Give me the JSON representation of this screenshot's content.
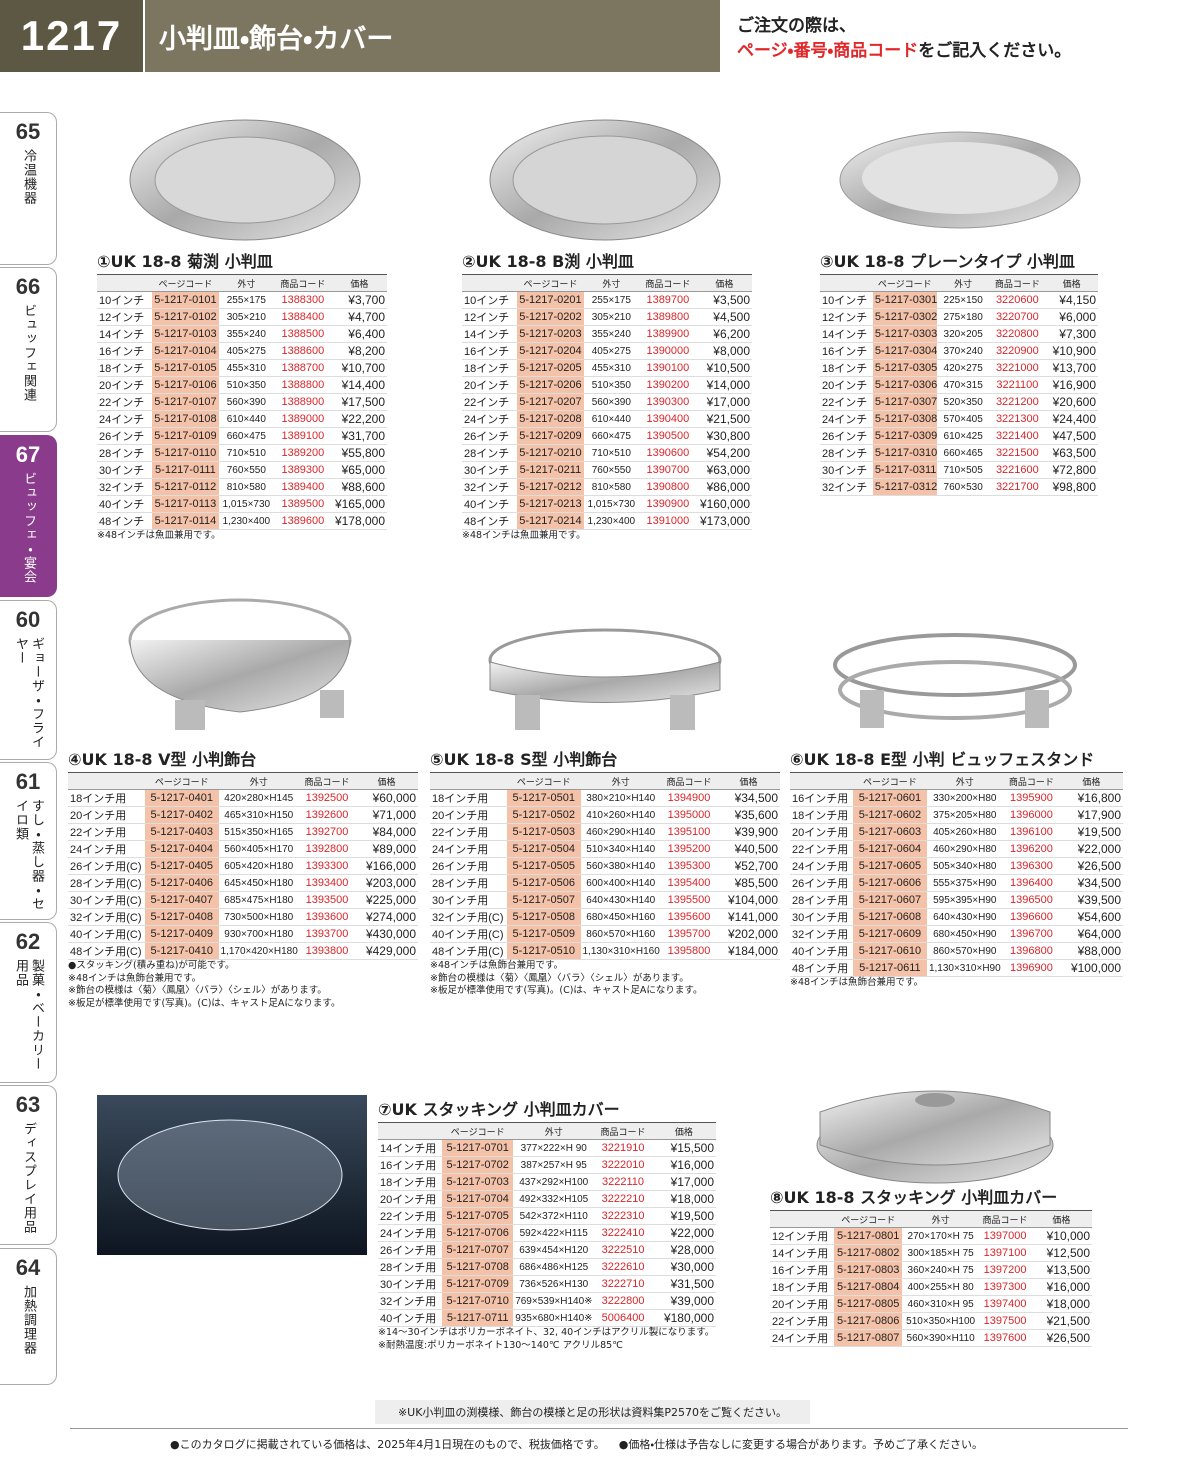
{
  "header": {
    "page_number": "1217",
    "title": "小判皿・飾台・カバー",
    "order_note": {
      "line1": "ご注文の際は、",
      "highlight": "ページ・番号・商品コード",
      "rest": "をご記入ください。"
    }
  },
  "side_tabs": [
    {
      "number": "65",
      "label": "冷温機器"
    },
    {
      "number": "66",
      "label": "ビュッフェ関連"
    },
    {
      "number": "67",
      "label": "ビュッフェ・宴会"
    },
    {
      "number": "60",
      "label": "ギョーザ・フライヤー"
    },
    {
      "number": "61",
      "label": "すし・蒸し器・セイロ類"
    },
    {
      "number": "62",
      "label": "製菓・ベーカリー用品"
    },
    {
      "number": "63",
      "label": "ディスプレイ用品"
    },
    {
      "number": "64",
      "label": "加熱調理器"
    }
  ],
  "products": [
    {
      "title": "①UK 18-8 菊渕 小判皿",
      "columns": [
        "ページコード",
        "外寸",
        "商品コード",
        "価格"
      ],
      "rows": [
        [
          "10インチ",
          "5-1217-0101",
          "255×175",
          "1388300",
          "¥3,700"
        ],
        [
          "12インチ",
          "5-1217-0102",
          "305×210",
          "1388400",
          "¥4,700"
        ],
        [
          "14インチ",
          "5-1217-0103",
          "355×240",
          "1388500",
          "¥6,400"
        ],
        [
          "16インチ",
          "5-1217-0104",
          "405×275",
          "1388600",
          "¥8,200"
        ],
        [
          "18インチ",
          "5-1217-0105",
          "455×310",
          "1388700",
          "¥10,700"
        ],
        [
          "20インチ",
          "5-1217-0106",
          "510×350",
          "1388800",
          "¥14,400"
        ],
        [
          "22インチ",
          "5-1217-0107",
          "560×390",
          "1388900",
          "¥17,500"
        ],
        [
          "24インチ",
          "5-1217-0108",
          "610×440",
          "1389000",
          "¥22,200"
        ],
        [
          "26インチ",
          "5-1217-0109",
          "660×475",
          "1389100",
          "¥31,700"
        ],
        [
          "28インチ",
          "5-1217-0110",
          "710×510",
          "1389200",
          "¥55,800"
        ],
        [
          "30インチ",
          "5-1217-0111",
          "760×550",
          "1389300",
          "¥65,000"
        ],
        [
          "32インチ",
          "5-1217-0112",
          "810×580",
          "1389400",
          "¥88,600"
        ],
        [
          "40インチ",
          "5-1217-0113",
          "1,015×730",
          "1389500",
          "¥165,000"
        ],
        [
          "48インチ",
          "5-1217-0114",
          "1,230×400",
          "1389600",
          "¥178,000"
        ]
      ],
      "notes": [
        "※48インチは魚皿兼用です。"
      ]
    },
    {
      "title": "②UK 18-8 B渕 小判皿",
      "columns": [
        "ページコード",
        "外寸",
        "商品コード",
        "価格"
      ],
      "rows": [
        [
          "10インチ",
          "5-1217-0201",
          "255×175",
          "1389700",
          "¥3,500"
        ],
        [
          "12インチ",
          "5-1217-0202",
          "305×210",
          "1389800",
          "¥4,500"
        ],
        [
          "14インチ",
          "5-1217-0203",
          "355×240",
          "1389900",
          "¥6,200"
        ],
        [
          "16インチ",
          "5-1217-0204",
          "405×275",
          "1390000",
          "¥8,000"
        ],
        [
          "18インチ",
          "5-1217-0205",
          "455×310",
          "1390100",
          "¥10,500"
        ],
        [
          "20インチ",
          "5-1217-0206",
          "510×350",
          "1390200",
          "¥14,000"
        ],
        [
          "22インチ",
          "5-1217-0207",
          "560×390",
          "1390300",
          "¥17,000"
        ],
        [
          "24インチ",
          "5-1217-0208",
          "610×440",
          "1390400",
          "¥21,500"
        ],
        [
          "26インチ",
          "5-1217-0209",
          "660×475",
          "1390500",
          "¥30,800"
        ],
        [
          "28インチ",
          "5-1217-0210",
          "710×510",
          "1390600",
          "¥54,200"
        ],
        [
          "30インチ",
          "5-1217-0211",
          "760×550",
          "1390700",
          "¥63,000"
        ],
        [
          "32インチ",
          "5-1217-0212",
          "810×580",
          "1390800",
          "¥86,000"
        ],
        [
          "40インチ",
          "5-1217-0213",
          "1,015×730",
          "1390900",
          "¥160,000"
        ],
        [
          "48インチ",
          "5-1217-0214",
          "1,230×400",
          "1391000",
          "¥173,000"
        ]
      ],
      "notes": [
        "※48インチは魚皿兼用です。"
      ]
    },
    {
      "title": "③UK 18-8 プレーンタイプ 小判皿",
      "columns": [
        "ページコード",
        "外寸",
        "商品コード",
        "価格"
      ],
      "rows": [
        [
          "10インチ",
          "5-1217-0301",
          "225×150",
          "3220600",
          "¥4,150"
        ],
        [
          "12インチ",
          "5-1217-0302",
          "275×180",
          "3220700",
          "¥6,000"
        ],
        [
          "14インチ",
          "5-1217-0303",
          "320×205",
          "3220800",
          "¥7,300"
        ],
        [
          "16インチ",
          "5-1217-0304",
          "370×240",
          "3220900",
          "¥10,900"
        ],
        [
          "18インチ",
          "5-1217-0305",
          "420×275",
          "3221000",
          "¥13,700"
        ],
        [
          "20インチ",
          "5-1217-0306",
          "470×315",
          "3221100",
          "¥16,900"
        ],
        [
          "22インチ",
          "5-1217-0307",
          "520×350",
          "3221200",
          "¥20,600"
        ],
        [
          "24インチ",
          "5-1217-0308",
          "570×405",
          "3221300",
          "¥24,400"
        ],
        [
          "26インチ",
          "5-1217-0309",
          "610×425",
          "3221400",
          "¥47,500"
        ],
        [
          "28インチ",
          "5-1217-0310",
          "660×465",
          "3221500",
          "¥63,500"
        ],
        [
          "30インチ",
          "5-1217-0311",
          "710×505",
          "3221600",
          "¥72,800"
        ],
        [
          "32インチ",
          "5-1217-0312",
          "760×530",
          "3221700",
          "¥98,800"
        ]
      ],
      "notes": []
    },
    {
      "title": "④UK 18-8 V型 小判飾台",
      "columns": [
        "ページコード",
        "外寸",
        "商品コード",
        "価格"
      ],
      "rows": [
        [
          "18インチ用",
          "5-1217-0401",
          "420×280×H145",
          "1392500",
          "¥60,000"
        ],
        [
          "20インチ用",
          "5-1217-0402",
          "465×310×H150",
          "1392600",
          "¥71,000"
        ],
        [
          "22インチ用",
          "5-1217-0403",
          "515×350×H165",
          "1392700",
          "¥84,000"
        ],
        [
          "24インチ用",
          "5-1217-0404",
          "560×405×H170",
          "1392800",
          "¥89,000"
        ],
        [
          "26インチ用(C)",
          "5-1217-0405",
          "605×420×H180",
          "1393300",
          "¥166,000"
        ],
        [
          "28インチ用(C)",
          "5-1217-0406",
          "645×450×H180",
          "1393400",
          "¥203,000"
        ],
        [
          "30インチ用(C)",
          "5-1217-0407",
          "685×475×H180",
          "1393500",
          "¥225,000"
        ],
        [
          "32インチ用(C)",
          "5-1217-0408",
          "730×500×H180",
          "1393600",
          "¥274,000"
        ],
        [
          "40インチ用(C)",
          "5-1217-0409",
          "930×700×H180",
          "1393700",
          "¥430,000"
        ],
        [
          "48インチ用(C)",
          "5-1217-0410",
          "1,170×420×H180",
          "1393800",
          "¥429,000"
        ]
      ],
      "notes": [
        "●スタッキング(積み重ね)が可能です。",
        "※48インチは魚飾台兼用です。",
        "※飾台の模様は〈菊〉〈鳳凰〉〈バラ〉〈シェル〉があります。",
        "※板足が標準使用です(写真)。(C)は、キャスト足Aになります。"
      ]
    },
    {
      "title": "⑤UK 18-8 S型 小判飾台",
      "columns": [
        "ページコード",
        "外寸",
        "商品コード",
        "価格"
      ],
      "rows": [
        [
          "18インチ用",
          "5-1217-0501",
          "380×210×H140",
          "1394900",
          "¥34,500"
        ],
        [
          "20インチ用",
          "5-1217-0502",
          "410×260×H140",
          "1395000",
          "¥35,600"
        ],
        [
          "22インチ用",
          "5-1217-0503",
          "460×290×H140",
          "1395100",
          "¥39,900"
        ],
        [
          "24インチ用",
          "5-1217-0504",
          "510×340×H140",
          "1395200",
          "¥40,500"
        ],
        [
          "26インチ用",
          "5-1217-0505",
          "560×380×H140",
          "1395300",
          "¥52,700"
        ],
        [
          "28インチ用",
          "5-1217-0506",
          "600×400×H140",
          "1395400",
          "¥85,500"
        ],
        [
          "30インチ用",
          "5-1217-0507",
          "640×430×H140",
          "1395500",
          "¥104,000"
        ],
        [
          "32インチ用(C)",
          "5-1217-0508",
          "680×450×H160",
          "1395600",
          "¥141,000"
        ],
        [
          "40インチ用(C)",
          "5-1217-0509",
          "860×570×H160",
          "1395700",
          "¥202,000"
        ],
        [
          "48インチ用(C)",
          "5-1217-0510",
          "1,130×310×H160",
          "1395800",
          "¥184,000"
        ]
      ],
      "notes": [
        "※48インチは魚飾台兼用です。",
        "※飾台の模様は〈菊〉〈鳳凰〉〈バラ〉〈シェル〉があります。",
        "※板足が標準使用です(写真)。(C)は、キャスト足Aになります。"
      ]
    },
    {
      "title": "⑥UK 18-8 E型 小判 ビュッフェスタンド",
      "columns": [
        "ページコード",
        "外寸",
        "商品コード",
        "価格"
      ],
      "rows": [
        [
          "16インチ用",
          "5-1217-0601",
          "330×200×H80",
          "1395900",
          "¥16,800"
        ],
        [
          "18インチ用",
          "5-1217-0602",
          "375×205×H80",
          "1396000",
          "¥17,900"
        ],
        [
          "20インチ用",
          "5-1217-0603",
          "405×260×H80",
          "1396100",
          "¥19,500"
        ],
        [
          "22インチ用",
          "5-1217-0604",
          "460×290×H80",
          "1396200",
          "¥22,000"
        ],
        [
          "24インチ用",
          "5-1217-0605",
          "505×340×H80",
          "1396300",
          "¥26,500"
        ],
        [
          "26インチ用",
          "5-1217-0606",
          "555×375×H90",
          "1396400",
          "¥34,500"
        ],
        [
          "28インチ用",
          "5-1217-0607",
          "595×395×H90",
          "1396500",
          "¥39,500"
        ],
        [
          "30インチ用",
          "5-1217-0608",
          "640×430×H90",
          "1396600",
          "¥54,600"
        ],
        [
          "32インチ用",
          "5-1217-0609",
          "680×450×H90",
          "1396700",
          "¥64,000"
        ],
        [
          "40インチ用",
          "5-1217-0610",
          "860×570×H90",
          "1396800",
          "¥88,000"
        ],
        [
          "48インチ用",
          "5-1217-0611",
          "1,130×310×H90",
          "1396900",
          "¥100,000"
        ]
      ],
      "notes": [
        "※48インチは魚飾台兼用です。"
      ]
    },
    {
      "title": "⑦UK スタッキング 小判皿カバー",
      "columns": [
        "ページコード",
        "外寸",
        "商品コード",
        "価格"
      ],
      "rows": [
        [
          "14インチ用",
          "5-1217-0701",
          "377×222×H 90",
          "3221910",
          "¥15,500"
        ],
        [
          "16インチ用",
          "5-1217-0702",
          "387×257×H 95",
          "3222010",
          "¥16,000"
        ],
        [
          "18インチ用",
          "5-1217-0703",
          "437×292×H100",
          "3222110",
          "¥17,000"
        ],
        [
          "20インチ用",
          "5-1217-0704",
          "492×332×H105",
          "3222210",
          "¥18,000"
        ],
        [
          "22インチ用",
          "5-1217-0705",
          "542×372×H110",
          "3222310",
          "¥19,500"
        ],
        [
          "24インチ用",
          "5-1217-0706",
          "592×422×H115",
          "3222410",
          "¥22,000"
        ],
        [
          "26インチ用",
          "5-1217-0707",
          "639×454×H120",
          "3222510",
          "¥28,000"
        ],
        [
          "28インチ用",
          "5-1217-0708",
          "686×486×H125",
          "3222610",
          "¥30,000"
        ],
        [
          "30インチ用",
          "5-1217-0709",
          "736×526×H130",
          "3222710",
          "¥31,500"
        ],
        [
          "32インチ用",
          "5-1217-0710",
          "769×539×H140※",
          "3222800",
          "¥39,000"
        ],
        [
          "40インチ用",
          "5-1217-0711",
          "935×680×H140※",
          "5006400",
          "¥180,000"
        ]
      ],
      "notes": [
        "※14～30インチはポリカーボネイト、32, 40インチはアクリル製になります。",
        "※耐熱温度:ポリカーボネイト130～140℃ アクリル85℃"
      ]
    },
    {
      "title": "⑧UK 18-8 スタッキング 小判皿カバー",
      "columns": [
        "ページコード",
        "外寸",
        "商品コード",
        "価格"
      ],
      "rows": [
        [
          "12インチ用",
          "5-1217-0801",
          "270×170×H 75",
          "1397000",
          "¥10,000"
        ],
        [
          "14インチ用",
          "5-1217-0802",
          "300×185×H 75",
          "1397100",
          "¥12,500"
        ],
        [
          "16インチ用",
          "5-1217-0803",
          "360×240×H 75",
          "1397200",
          "¥13,500"
        ],
        [
          "18インチ用",
          "5-1217-0804",
          "400×255×H 80",
          "1397300",
          "¥16,000"
        ],
        [
          "20インチ用",
          "5-1217-0805",
          "460×310×H 95",
          "1397400",
          "¥18,000"
        ],
        [
          "22インチ用",
          "5-1217-0806",
          "510×350×H100",
          "1397500",
          "¥21,500"
        ],
        [
          "24インチ用",
          "5-1217-0807",
          "560×390×H110",
          "1397600",
          "¥26,500"
        ]
      ],
      "notes": []
    }
  ],
  "reference_note": "※UK小判皿の渕模様、飾台の模様と足の形状は資料集P2570をご覧ください。",
  "footer": [
    "●このカタログに掲載されている価格は、2025年4月1日現在のもので、税抜価格です。",
    "●価格・仕様は予告なしに変更する場合があります。予めご了承ください。"
  ]
}
